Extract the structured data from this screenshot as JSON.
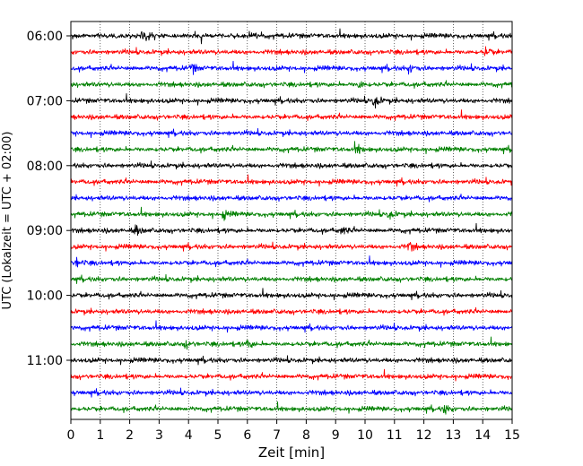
{
  "chart_data": {
    "type": "line",
    "title": "",
    "xlabel": "Zeit  [min]",
    "ylabel": "UTC (Lokalzeit = UTC + 02:00)",
    "xlim": [
      0,
      15
    ],
    "x_ticks": [
      0,
      1,
      2,
      3,
      4,
      5,
      6,
      7,
      8,
      9,
      10,
      11,
      12,
      13,
      14,
      15
    ],
    "x_tick_labels": [
      "0",
      "1",
      "2",
      "3",
      "4",
      "5",
      "6",
      "7",
      "8",
      "9",
      "10",
      "11",
      "12",
      "13",
      "14",
      "15"
    ],
    "y_tick_labels": [
      "06:00",
      "07:00",
      "08:00",
      "09:00",
      "10:00",
      "11:00"
    ],
    "row_start_times": [
      "06:00",
      "06:15",
      "06:30",
      "06:45",
      "07:00",
      "07:15",
      "07:30",
      "07:45",
      "08:00",
      "08:15",
      "08:30",
      "08:45",
      "09:00",
      "09:15",
      "09:30",
      "09:45",
      "10:00",
      "10:15",
      "10:30",
      "10:45",
      "11:00",
      "11:15",
      "11:30",
      "11:45"
    ],
    "color_cycle": [
      "#000000",
      "#ff0000",
      "#0000ff",
      "#008000"
    ],
    "vertical_gridlines": "dotted, at every minute",
    "legend": "none",
    "events": [
      {
        "row": "06:00",
        "minute": 2.4,
        "amplitude": "medium"
      },
      {
        "row": "06:15",
        "minute": 14.1,
        "amplitude": "small"
      },
      {
        "row": "06:30",
        "minute": 4.1,
        "amplitude": "small"
      },
      {
        "row": "06:30",
        "minute": 11.5,
        "amplitude": "small"
      },
      {
        "row": "06:45",
        "minute": 9.8,
        "amplitude": "small"
      },
      {
        "row": "07:00",
        "minute": 10.3,
        "amplitude": "medium"
      },
      {
        "row": "07:45",
        "minute": 9.7,
        "amplitude": "small"
      },
      {
        "row": "08:45",
        "minute": 5.2,
        "amplitude": "small"
      },
      {
        "row": "08:45",
        "minute": 10.8,
        "amplitude": "small"
      },
      {
        "row": "09:00",
        "minute": 2.2,
        "amplitude": "small"
      },
      {
        "row": "09:00",
        "minute": 9.2,
        "amplitude": "small"
      },
      {
        "row": "09:15",
        "minute": 11.5,
        "amplitude": "small"
      },
      {
        "row": "09:30",
        "minute": 0.2,
        "amplitude": "small"
      },
      {
        "row": "10:45",
        "minute": 3.9,
        "amplitude": "small"
      },
      {
        "row": "10:45",
        "minute": 6.0,
        "amplitude": "small"
      },
      {
        "row": "11:45",
        "minute": 12.7,
        "amplitude": "small"
      }
    ]
  }
}
